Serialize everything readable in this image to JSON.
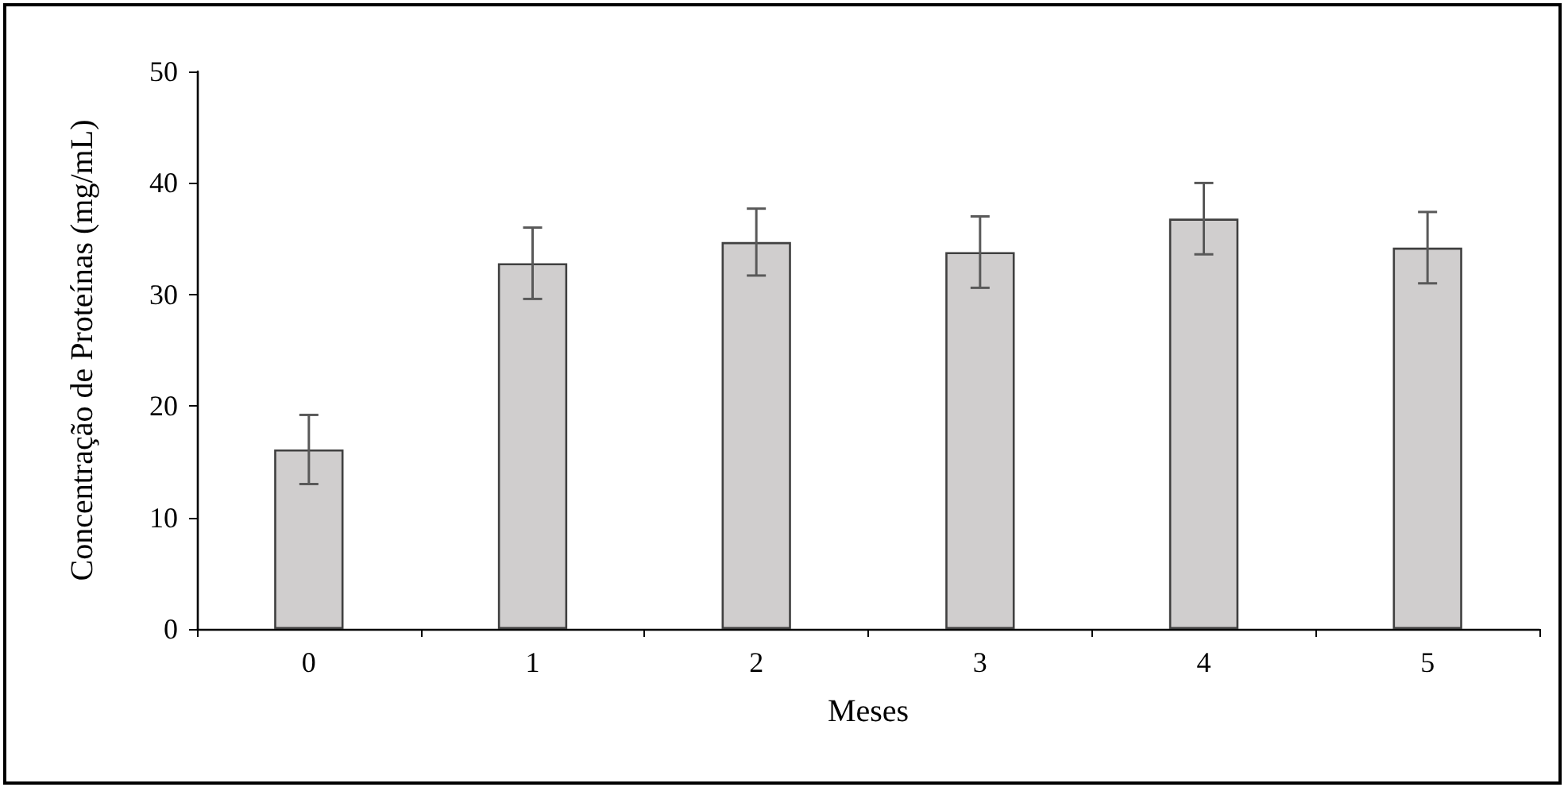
{
  "chart_data": {
    "type": "bar",
    "xlabel": "Meses",
    "ylabel": "Concentração de Proteínas (mg/mL)",
    "categories": [
      "0",
      "1",
      "2",
      "3",
      "4",
      "5"
    ],
    "values": [
      16.1,
      32.8,
      34.7,
      33.8,
      36.8,
      34.2
    ],
    "errors": [
      3.1,
      3.2,
      3.0,
      3.2,
      3.2,
      3.2
    ],
    "color": "#d0cece",
    "ylim": [
      0,
      50
    ],
    "yticks": [
      0,
      10,
      20,
      30,
      40,
      50
    ]
  }
}
